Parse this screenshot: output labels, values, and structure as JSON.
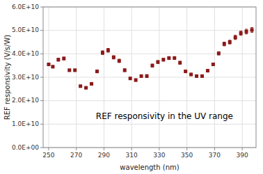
{
  "chart_data": {
    "type": "scatter",
    "title": "REF responsivity in the UV range",
    "xlabel": "wavelength (nm)",
    "ylabel": "REF responsivity (V/s/W)",
    "x": [
      250,
      253,
      257,
      261,
      265,
      269,
      273,
      277,
      281,
      285,
      289,
      293,
      297,
      301,
      305,
      309,
      313,
      317,
      321,
      325,
      329,
      333,
      337,
      341,
      345,
      349,
      353,
      357,
      361,
      365,
      369,
      373,
      377,
      381,
      385,
      389,
      393,
      397
    ],
    "values": [
      35500000000.0,
      34500000000.0,
      37500000000.0,
      38000000000.0,
      33000000000.0,
      33000000000.0,
      26200000000.0,
      25500000000.0,
      27200000000.0,
      32500000000.0,
      40500000000.0,
      41500000000.0,
      38500000000.0,
      37000000000.0,
      33000000000.0,
      29500000000.0,
      28800000000.0,
      30500000000.0,
      30500000000.0,
      35000000000.0,
      36500000000.0,
      37500000000.0,
      38200000000.0,
      38200000000.0,
      36200000000.0,
      32500000000.0,
      31200000000.0,
      30500000000.0,
      30500000000.0,
      32800000000.0,
      35500000000.0,
      40200000000.0,
      44200000000.0,
      45000000000.0,
      47000000000.0,
      48800000000.0,
      49500000000.0,
      50200000000.0
    ],
    "errors": [
      500000000.0,
      500000000.0,
      600000000.0,
      600000000.0,
      500000000.0,
      500000000.0,
      400000000.0,
      400000000.0,
      500000000.0,
      600000000.0,
      800000000.0,
      800000000.0,
      700000000.0,
      700000000.0,
      600000000.0,
      500000000.0,
      500000000.0,
      500000000.0,
      600000000.0,
      600000000.0,
      600000000.0,
      600000000.0,
      600000000.0,
      600000000.0,
      600000000.0,
      500000000.0,
      500000000.0,
      500000000.0,
      500000000.0,
      500000000.0,
      600000000.0,
      700000000.0,
      800000000.0,
      800000000.0,
      900000000.0,
      900000000.0,
      1000000000.0,
      1000000000.0
    ],
    "color": "#8B1A1A",
    "marker": "square",
    "xlim": [
      246,
      400
    ],
    "ylim": [
      0,
      60000000000.0
    ],
    "xticks": [
      250,
      270,
      290,
      310,
      330,
      350,
      370,
      390
    ],
    "yticks": [
      {
        "value": 0,
        "label": "0.0E+00"
      },
      {
        "value": 10000000000.0,
        "label": "1.0E+10"
      },
      {
        "value": 20000000000.0,
        "label": "2.0E+10"
      },
      {
        "value": 30000000000.0,
        "label": "3.0E+10"
      },
      {
        "value": 40000000000.0,
        "label": "4.0E+10"
      },
      {
        "value": 50000000000.0,
        "label": "5.0E+10"
      },
      {
        "value": 60000000000.0,
        "label": "6.0E+10"
      }
    ],
    "grid": true
  }
}
